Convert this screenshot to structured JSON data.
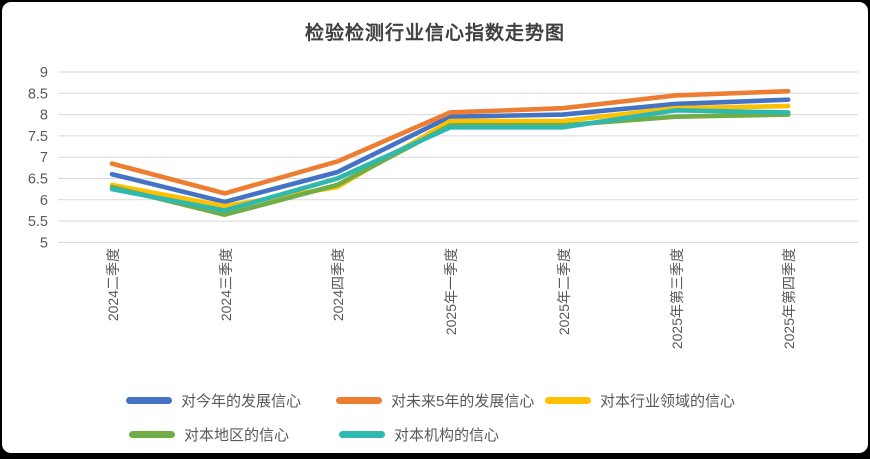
{
  "title": "检验检测行业信心指数走势图",
  "chart_data": {
    "type": "line",
    "title": "检验检测行业信心指数走势图",
    "categories": [
      "2024二季度",
      "2024三季度",
      "2024四季度",
      "2025年一季度",
      "2025年二季度",
      "2025年第三季度",
      "2025年第四季度"
    ],
    "series": [
      {
        "name": "对今年的发展信心",
        "color": "#4472C4",
        "values": [
          6.6,
          5.95,
          6.65,
          7.95,
          8.0,
          8.25,
          8.35
        ]
      },
      {
        "name": "对未来5年的发展信心",
        "color": "#ED7D31",
        "values": [
          6.85,
          6.15,
          6.9,
          8.05,
          8.15,
          8.45,
          8.55
        ]
      },
      {
        "name": "对本行业领域的信心",
        "color": "#FFC000",
        "values": [
          6.35,
          5.85,
          6.3,
          7.85,
          7.85,
          8.15,
          8.2
        ]
      },
      {
        "name": "对本地区的信心",
        "color": "#70AD47",
        "values": [
          6.3,
          5.65,
          6.35,
          7.75,
          7.75,
          7.95,
          8.0
        ]
      },
      {
        "name": "对本机构的信心",
        "color": "#2FB8B0",
        "values": [
          6.25,
          5.75,
          6.5,
          7.7,
          7.7,
          8.1,
          8.05
        ]
      }
    ],
    "ylim": [
      5,
      9
    ],
    "yticks": [
      9,
      8.5,
      8,
      7.5,
      7,
      6.5,
      6,
      5.5,
      5
    ],
    "ytick_labels": [
      "9",
      "8.5",
      "8",
      "7.5",
      "7",
      "6.5",
      "6",
      "5.5",
      "5"
    ],
    "grid": "horizontal",
    "legend_position": "bottom",
    "colors": {
      "grid": "#D9D9D9",
      "axis_text": "#595959",
      "title_text": "#404040",
      "background": "#FFFFFF",
      "frame": "#000000"
    }
  }
}
